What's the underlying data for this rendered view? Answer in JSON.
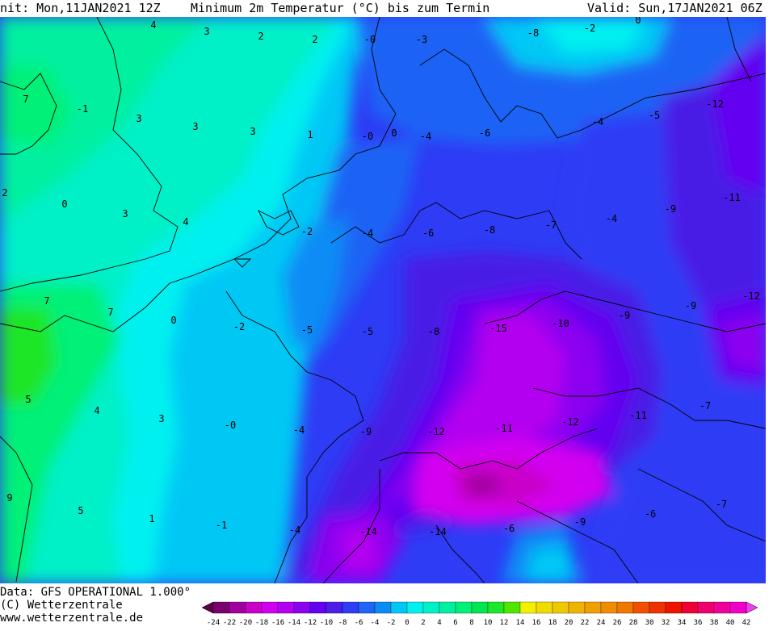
{
  "header": {
    "init": "nit: Mon,11JAN2021 12Z",
    "title": "Minimum 2m Temperatur (°C) bis zum Termin",
    "valid": "Valid: Sun,17JAN2021 06Z"
  },
  "footer": {
    "data_line": "Data: GFS OPERATIONAL 1.000°",
    "copyright": "(C) Wetterzentrale",
    "url": "www.wetterzentrale.de"
  },
  "legend": {
    "ticks": [
      "-24",
      "-22",
      "-20",
      "-18",
      "-16",
      "-14",
      "-12",
      "-10",
      "-8",
      "-6",
      "-4",
      "-2",
      "0",
      "2",
      "4",
      "6",
      "8",
      "10",
      "12",
      "14",
      "16",
      "18",
      "20",
      "22",
      "24",
      "26",
      "28",
      "30",
      "32",
      "34",
      "36",
      "38",
      "40",
      "42"
    ],
    "colors": [
      "#5c0047",
      "#7a0070",
      "#a000a0",
      "#c800c8",
      "#d200f0",
      "#b400f0",
      "#8c00f0",
      "#6400f0",
      "#4a1ee6",
      "#2e3cf5",
      "#1e64f5",
      "#0a8cf5",
      "#00c8f5",
      "#00f0f0",
      "#00f0c8",
      "#00f0a0",
      "#00f078",
      "#00e650",
      "#1ee628",
      "#50e600",
      "#f0f000",
      "#f0dc00",
      "#f0c800",
      "#f0b400",
      "#f0a000",
      "#f08c00",
      "#f07800",
      "#f05000",
      "#f03200",
      "#f01400",
      "#f00032",
      "#f0006e",
      "#f0009b",
      "#f000c8",
      "#f03cf0"
    ]
  },
  "map_labels": [
    {
      "t": "4"
    },
    {
      "t": "3"
    },
    {
      "t": "2"
    },
    {
      "t": "2"
    },
    {
      "t": "-0"
    },
    {
      "t": "-3"
    },
    {
      "t": "-8"
    },
    {
      "t": "-2"
    },
    {
      "t": "0"
    },
    {
      "t": "7"
    },
    {
      "t": "-1"
    },
    {
      "t": "3"
    },
    {
      "t": "3"
    },
    {
      "t": "3"
    },
    {
      "t": "1"
    },
    {
      "t": "-0"
    },
    {
      "t": "0"
    },
    {
      "t": "-4"
    },
    {
      "t": "-6"
    },
    {
      "t": "-12"
    },
    {
      "t": "-4"
    },
    {
      "t": "-5"
    },
    {
      "t": "2"
    },
    {
      "t": "0"
    },
    {
      "t": "3"
    },
    {
      "t": "4"
    },
    {
      "t": "-11"
    },
    {
      "t": "-9"
    },
    {
      "t": "-4"
    },
    {
      "t": "-2"
    },
    {
      "t": "-4"
    },
    {
      "t": "-6"
    },
    {
      "t": "-8"
    },
    {
      "t": "-7"
    },
    {
      "t": "7"
    },
    {
      "t": "7"
    },
    {
      "t": "0"
    },
    {
      "t": "-2"
    },
    {
      "t": "-5"
    },
    {
      "t": "-5"
    },
    {
      "t": "-8"
    },
    {
      "t": "-15"
    },
    {
      "t": "-10"
    },
    {
      "t": "-9"
    },
    {
      "t": "-9"
    },
    {
      "t": "-12"
    },
    {
      "t": "5"
    },
    {
      "t": "4"
    },
    {
      "t": "3"
    },
    {
      "t": "-0"
    },
    {
      "t": "-4"
    },
    {
      "t": "-9"
    },
    {
      "t": "-12"
    },
    {
      "t": "-11"
    },
    {
      "t": "-12"
    },
    {
      "t": "-11"
    },
    {
      "t": "-7"
    },
    {
      "t": "9"
    },
    {
      "t": "5"
    },
    {
      "t": "1"
    },
    {
      "t": "-1"
    },
    {
      "t": "-4"
    },
    {
      "t": "-14"
    },
    {
      "t": "-14"
    },
    {
      "t": "-6"
    },
    {
      "t": "-9"
    },
    {
      "t": "-6"
    },
    {
      "t": "-7"
    }
  ]
}
